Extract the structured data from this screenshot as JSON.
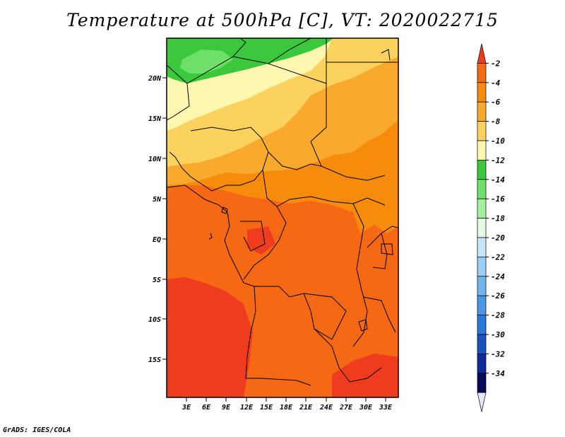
{
  "title": "Temperature at 500hPa [C], VT: 2020022715",
  "footer": "GrADS: IGES/COLA",
  "lat_labels": [
    "20N",
    "15N",
    "10N",
    "5N",
    "EQ",
    "5S",
    "10S",
    "15S"
  ],
  "lon_labels": [
    "3E",
    "6E",
    "9E",
    "12E",
    "15E",
    "18E",
    "21E",
    "24E",
    "27E",
    "30E",
    "33E"
  ],
  "colorbar": {
    "labels": [
      "-2",
      "-4",
      "-6",
      "-8",
      "-10",
      "-12",
      "-14",
      "-16",
      "-18",
      "-20",
      "-22",
      "-24",
      "-26",
      "-28",
      "-30",
      "-32",
      "-34"
    ],
    "colors": [
      "#f03c1e",
      "#f56814",
      "#f78c0c",
      "#f9aa2c",
      "#fbd25e",
      "#fff7b0",
      "#3cc83c",
      "#6ee06a",
      "#a4f09c",
      "#e2fbe2",
      "#c6e6fa",
      "#9ccdf4",
      "#74b4ee",
      "#4b96e6",
      "#2a78da",
      "#1a52bf",
      "#0f2a9a",
      "#080a5c",
      "#e6e6fa"
    ]
  },
  "map_colors": {
    "c_minus2": "#f03c1e",
    "c_minus4": "#f56814",
    "c_minus6": "#f78c0c",
    "c_minus8": "#f9aa2c",
    "c_minus10": "#fbd25e",
    "c_minus12": "#fff7b0",
    "c_minus14": "#3cc83c",
    "c_minus16": "#6ee06a",
    "border": "#000000"
  }
}
